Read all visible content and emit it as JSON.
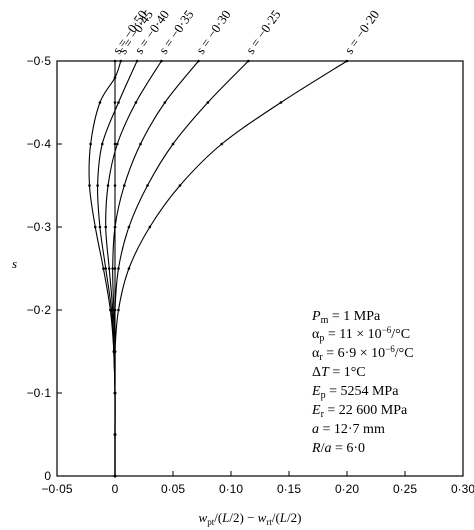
{
  "chart_data": {
    "type": "line",
    "xlabel": "w_pt/(L/2) − w_rt/(L/2)",
    "ylabel": "s",
    "xlim": [
      -0.05,
      0.3
    ],
    "ylim": [
      0,
      -0.5
    ],
    "x_ticks": [
      -0.05,
      0,
      0.05,
      0.1,
      0.15,
      0.2,
      0.25,
      0.3
    ],
    "x_tick_labels": [
      "−0·05",
      "0",
      "0·05",
      "0·10",
      "0·15",
      "0·20",
      "0·25",
      "0·30"
    ],
    "y_ticks": [
      0,
      -0.1,
      -0.2,
      -0.3,
      -0.4,
      -0.5
    ],
    "y_tick_labels": [
      "0",
      "−0·1",
      "−0·2",
      "−0·3",
      "−0·4",
      "−0·5"
    ],
    "grid": false,
    "legend": "none",
    "series": [
      {
        "name": "s = −0·50",
        "points": [
          [
            0.0,
            0.0
          ],
          [
            0.0,
            -0.05
          ],
          [
            0.0,
            -0.1
          ],
          [
            0.0,
            -0.15
          ],
          [
            0.0,
            -0.2
          ],
          [
            0.0,
            -0.25
          ],
          [
            0.0,
            -0.3
          ],
          [
            0.0,
            -0.35
          ],
          [
            0.0,
            -0.4
          ],
          [
            0.0,
            -0.45
          ],
          [
            0.0,
            -0.5
          ]
        ]
      },
      {
        "name": "s = −0·45",
        "points": [
          [
            0.0,
            0.0
          ],
          [
            0.0,
            -0.05
          ],
          [
            0.0,
            -0.1
          ],
          [
            -0.001,
            -0.15
          ],
          [
            -0.004,
            -0.2
          ],
          [
            -0.01,
            -0.25
          ],
          [
            -0.017,
            -0.3
          ],
          [
            -0.022,
            -0.35
          ],
          [
            -0.021,
            -0.4
          ],
          [
            -0.013,
            -0.45
          ],
          [
            0.0,
            -0.48
          ],
          [
            0.005,
            -0.5
          ]
        ]
      },
      {
        "name": "s = −0·40",
        "points": [
          [
            0.0,
            0.0
          ],
          [
            0.0,
            -0.05
          ],
          [
            0.0,
            -0.1
          ],
          [
            -0.001,
            -0.15
          ],
          [
            -0.003,
            -0.2
          ],
          [
            -0.008,
            -0.25
          ],
          [
            -0.013,
            -0.3
          ],
          [
            -0.015,
            -0.35
          ],
          [
            -0.011,
            -0.4
          ],
          [
            0.003,
            -0.45
          ],
          [
            0.019,
            -0.5
          ]
        ]
      },
      {
        "name": "s = −0·35",
        "points": [
          [
            0.0,
            0.0
          ],
          [
            0.0,
            -0.05
          ],
          [
            0.0,
            -0.1
          ],
          [
            -0.001,
            -0.15
          ],
          [
            -0.002,
            -0.2
          ],
          [
            -0.005,
            -0.25
          ],
          [
            -0.008,
            -0.3
          ],
          [
            -0.006,
            -0.35
          ],
          [
            0.002,
            -0.4
          ],
          [
            0.018,
            -0.45
          ],
          [
            0.04,
            -0.5
          ]
        ]
      },
      {
        "name": "s = −0·30",
        "points": [
          [
            0.0,
            0.0
          ],
          [
            0.0,
            -0.05
          ],
          [
            0.0,
            -0.1
          ],
          [
            0.0,
            -0.15
          ],
          [
            -0.001,
            -0.2
          ],
          [
            -0.002,
            -0.25
          ],
          [
            0.0,
            -0.3
          ],
          [
            0.008,
            -0.35
          ],
          [
            0.022,
            -0.4
          ],
          [
            0.043,
            -0.45
          ],
          [
            0.072,
            -0.5
          ]
        ]
      },
      {
        "name": "s = −0·25",
        "points": [
          [
            0.0,
            0.0
          ],
          [
            0.0,
            -0.05
          ],
          [
            0.0,
            -0.1
          ],
          [
            0.0,
            -0.15
          ],
          [
            0.0,
            -0.2
          ],
          [
            0.003,
            -0.25
          ],
          [
            0.012,
            -0.3
          ],
          [
            0.028,
            -0.35
          ],
          [
            0.05,
            -0.4
          ],
          [
            0.08,
            -0.45
          ],
          [
            0.115,
            -0.5
          ]
        ]
      },
      {
        "name": "s = −0·20",
        "points": [
          [
            0.0,
            0.0
          ],
          [
            0.0,
            -0.05
          ],
          [
            0.0,
            -0.1
          ],
          [
            0.0,
            -0.15
          ],
          [
            0.003,
            -0.2
          ],
          [
            0.012,
            -0.25
          ],
          [
            0.03,
            -0.3
          ],
          [
            0.056,
            -0.35
          ],
          [
            0.092,
            -0.4
          ],
          [
            0.143,
            -0.45
          ],
          [
            0.2,
            -0.5
          ]
        ]
      }
    ]
  },
  "series_labels": [
    "s = −0·50",
    "s = −0·45",
    "s = −0·40",
    "s = −0·35",
    "s = −0·30",
    "s = −0·25",
    "s = −0·20"
  ],
  "annotations": [
    "Pm = 1 MPa",
    "αp = 11 × 10⁻⁶/°C",
    "αr = 6·9 × 10⁻⁶/°C",
    "ΔT = 1°C",
    "Ep = 5254 MPa",
    "Er = 22 600 MPa",
    "a = 12·7 mm",
    "R/a = 6·0"
  ]
}
